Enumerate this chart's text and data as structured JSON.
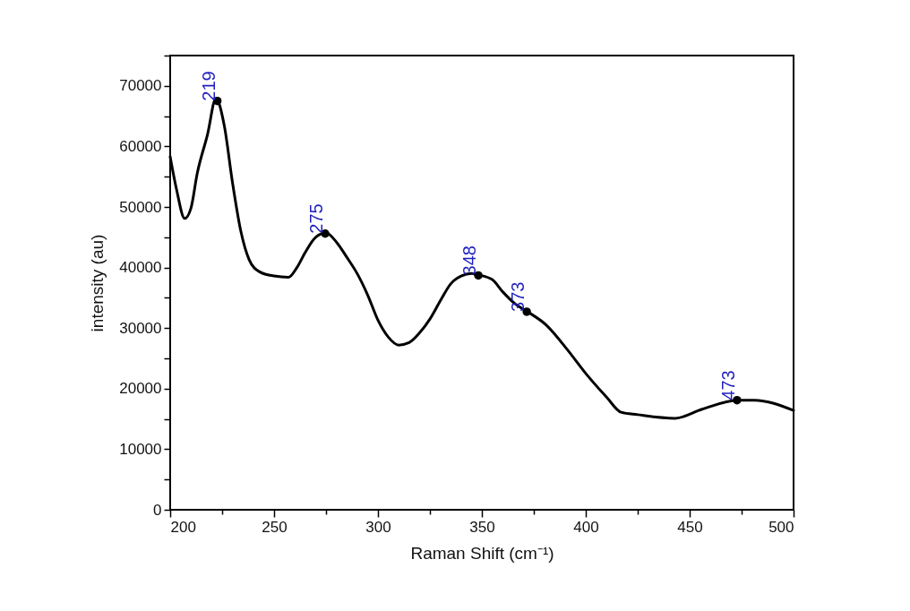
{
  "chart_data": {
    "type": "line",
    "xlabel": "Raman Shift (cm⁻¹)",
    "ylabel": "intensity (au)",
    "xlim": [
      200,
      500
    ],
    "ylim": [
      0,
      75000
    ],
    "xticks": [
      200,
      {
        "value": 225,
        "label": null
      },
      250,
      {
        "value": 275,
        "label": null
      },
      300,
      {
        "value": 325,
        "label": null
      },
      350,
      {
        "value": 375,
        "label": null
      },
      400,
      {
        "value": 425,
        "label": null
      },
      450,
      {
        "value": 475,
        "label": null
      },
      500
    ],
    "yticks": [
      0,
      {
        "value": 5000,
        "label": null
      },
      10000,
      {
        "value": 15000,
        "label": null
      },
      20000,
      {
        "value": 25000,
        "label": null
      },
      30000,
      {
        "value": 35000,
        "label": null
      },
      40000,
      {
        "value": 45000,
        "label": null
      },
      50000,
      {
        "value": 55000,
        "label": null
      },
      60000,
      {
        "value": 65000,
        "label": null
      },
      70000,
      {
        "value": 75000,
        "label": null
      }
    ],
    "grid": false,
    "legend": false,
    "series": [
      {
        "type": "line",
        "color": "#000000",
        "x": [
          200,
          203,
          207,
          210,
          213,
          218,
          222,
          226,
          230,
          234,
          238,
          243,
          250,
          257,
          261,
          265,
          270,
          275,
          280,
          285,
          290,
          295,
          300,
          305,
          310,
          315,
          320,
          325,
          330,
          335,
          340,
          345,
          348,
          355,
          360,
          366,
          372,
          381,
          391,
          400,
          410,
          417,
          425,
          443,
          456,
          473,
          481,
          500
        ],
        "values": [
          58300,
          53000,
          48100,
          49800,
          55500,
          62000,
          67900,
          63500,
          54000,
          46000,
          41300,
          39300,
          38600,
          38400,
          40000,
          42500,
          45000,
          45700,
          44200,
          41700,
          39000,
          35500,
          31300,
          28500,
          27200,
          27600,
          29200,
          31500,
          34500,
          37300,
          38600,
          39000,
          38800,
          38000,
          36000,
          34000,
          32700,
          30500,
          26500,
          22500,
          18600,
          16100,
          15700,
          15100,
          16600,
          18100,
          18100,
          16400
        ]
      },
      {
        "type": "scatter",
        "marker": "circle",
        "color": "#000000",
        "x": [
          222.7,
          274.6,
          348.3,
          371.6,
          472.8
        ],
        "values": [
          67500,
          45600,
          38700,
          32700,
          18100
        ]
      }
    ],
    "annotations": [
      {
        "text": "219",
        "x": 222.7,
        "y": 67500
      },
      {
        "text": "275",
        "x": 274.6,
        "y": 45600
      },
      {
        "text": "348",
        "x": 348.3,
        "y": 38700
      },
      {
        "text": "373",
        "x": 371.6,
        "y": 32700
      },
      {
        "text": "473",
        "x": 472.8,
        "y": 18100
      }
    ]
  }
}
